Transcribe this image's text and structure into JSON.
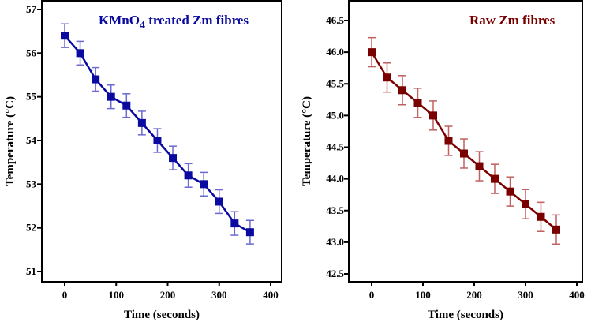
{
  "chart_data": [
    {
      "type": "line",
      "title": "KMnO4 treated Zm fibres",
      "title_main": "KMnO",
      "title_sub": "4",
      "title_rest": " treated Zm fibres",
      "xlabel": "Time (seconds)",
      "ylabel": "Temperature (°C)",
      "xlim": [
        -40,
        420
      ],
      "ylim": [
        50.8,
        57.2
      ],
      "xticks": [
        0,
        100,
        200,
        300,
        400
      ],
      "yticks": [
        51,
        52,
        53,
        54,
        55,
        56,
        57
      ],
      "ytick_labels": [
        "51",
        "52",
        "53",
        "54",
        "55",
        "56",
        "57"
      ],
      "color": "#0a0aa0",
      "error_color": "#6a6ad0",
      "grid": false,
      "x": [
        0,
        30,
        60,
        90,
        120,
        150,
        180,
        210,
        240,
        270,
        300,
        330,
        360
      ],
      "y": [
        56.4,
        56.0,
        55.4,
        55.0,
        54.8,
        54.4,
        54.0,
        53.6,
        53.2,
        53.0,
        52.6,
        52.1,
        51.9
      ],
      "yerr": 0.27
    },
    {
      "type": "line",
      "title": "Raw Zm fibres",
      "xlabel": "Time (seconds)",
      "ylabel": "Temperature (°C)",
      "xlim": [
        -40,
        420
      ],
      "ylim": [
        42.4,
        46.8
      ],
      "xticks": [
        0,
        100,
        200,
        300,
        400
      ],
      "yticks": [
        42.5,
        43.0,
        43.5,
        44.0,
        44.5,
        45.0,
        45.5,
        46.0,
        46.5
      ],
      "ytick_labels": [
        "42.5",
        "43.0",
        "43.5",
        "44.0",
        "44.5",
        "45.0",
        "45.5",
        "46.0",
        "46.5"
      ],
      "color": "#7a0000",
      "error_color": "#c06060",
      "grid": false,
      "x": [
        0,
        30,
        60,
        90,
        120,
        150,
        180,
        210,
        240,
        270,
        300,
        330,
        360
      ],
      "y": [
        46.0,
        45.6,
        45.4,
        45.2,
        45.0,
        44.6,
        44.4,
        44.2,
        44.0,
        43.8,
        43.6,
        43.4,
        43.2
      ],
      "yerr": 0.23
    }
  ]
}
